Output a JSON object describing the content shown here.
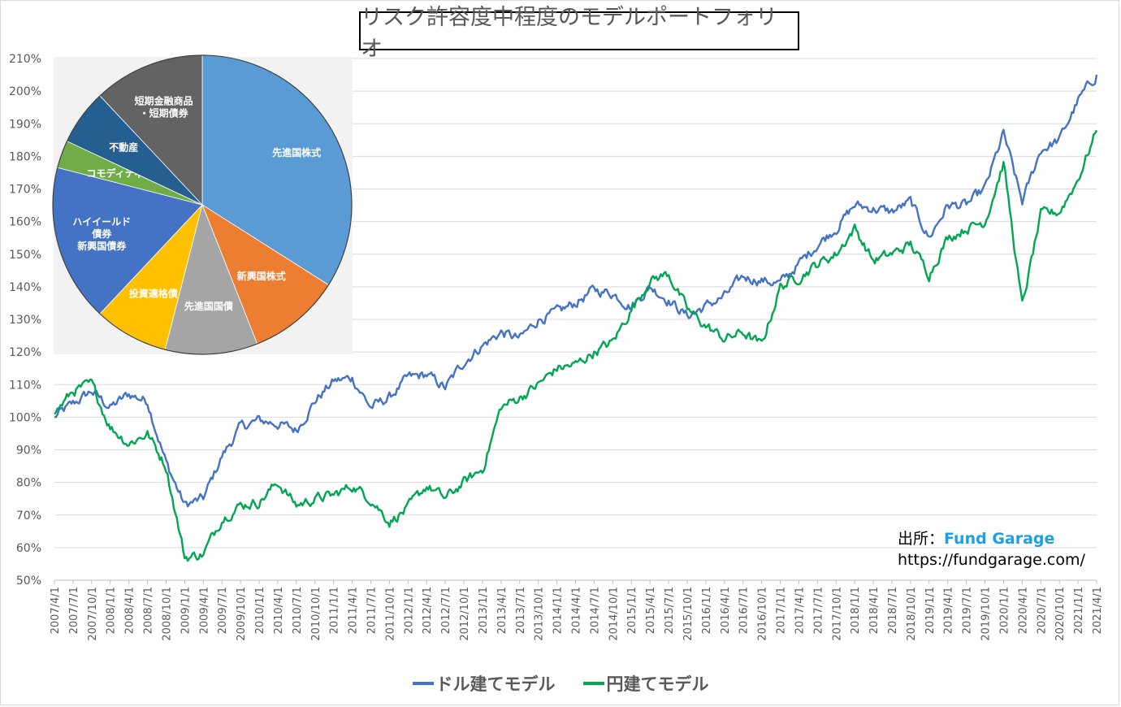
{
  "title": "リスク許容度中程度のモデルポートフォリオ",
  "source": {
    "label": "出所：",
    "brand": "Fund Garage",
    "url": "https://fundgarage.com/"
  },
  "chart_data": [
    {
      "type": "line",
      "ylim": [
        50,
        210
      ],
      "yticks": [
        "50%",
        "60%",
        "70%",
        "80%",
        "90%",
        "100%",
        "110%",
        "120%",
        "130%",
        "140%",
        "150%",
        "160%",
        "170%",
        "180%",
        "190%",
        "200%",
        "210%"
      ],
      "x": [
        "2007/4/1",
        "2007/7/1",
        "2007/10/1",
        "2008/1/1",
        "2008/4/1",
        "2008/7/1",
        "2008/10/1",
        "2009/1/1",
        "2009/4/1",
        "2009/7/1",
        "2009/10/1",
        "2010/1/1",
        "2010/4/1",
        "2010/7/1",
        "2010/10/1",
        "2011/1/1",
        "2011/4/1",
        "2011/7/1",
        "2011/10/1",
        "2012/1/1",
        "2012/4/1",
        "2012/7/1",
        "2012/10/1",
        "2013/1/1",
        "2013/4/1",
        "2013/7/1",
        "2013/10/1",
        "2014/1/1",
        "2014/4/1",
        "2014/7/1",
        "2014/10/1",
        "2015/1/1",
        "2015/4/1",
        "2015/7/1",
        "2015/10/1",
        "2016/1/1",
        "2016/4/1",
        "2016/7/1",
        "2016/10/1",
        "2017/1/1",
        "2017/4/1",
        "2017/7/1",
        "2017/10/1",
        "2018/1/1",
        "2018/4/1",
        "2018/7/1",
        "2018/10/1",
        "2019/1/1",
        "2019/4/1",
        "2019/7/1",
        "2019/10/1",
        "2020/1/1",
        "2020/4/1",
        "2020/7/1",
        "2020/10/1",
        "2021/1/1",
        "2021/4/1"
      ],
      "series": [
        {
          "name": "ドル建てモデル",
          "color": "#4472c4",
          "values": [
            100,
            104,
            108,
            103,
            107,
            105,
            86,
            73,
            75,
            88,
            97,
            99,
            98,
            96,
            105,
            111,
            112,
            103,
            106,
            112,
            113,
            109,
            117,
            122,
            126,
            124,
            130,
            132,
            135,
            139,
            138,
            134,
            140,
            136,
            131,
            134,
            137,
            143,
            142,
            141,
            147,
            153,
            158,
            165,
            164,
            163,
            166,
            155,
            165,
            165,
            170,
            187,
            166,
            182,
            185,
            197,
            205
          ]
        },
        {
          "name": "円建てモデル",
          "color": "#00a651",
          "values": [
            101,
            108,
            110,
            97,
            92,
            95,
            85,
            57,
            58,
            69,
            73,
            74,
            80,
            73,
            75,
            76,
            79,
            75,
            68,
            72,
            79,
            75,
            80,
            84,
            103,
            106,
            110,
            115,
            116,
            120,
            123,
            133,
            142,
            144,
            133,
            128,
            124,
            126,
            122,
            140,
            143,
            147,
            150,
            158,
            148,
            150,
            153,
            144,
            155,
            158,
            160,
            178,
            134,
            162,
            163,
            173,
            188
          ]
        }
      ],
      "legend": [
        "ドル建てモデル",
        "円建てモデル"
      ]
    },
    {
      "type": "pie",
      "labels": [
        "先進国株式",
        "新興国株式",
        "先進国国債",
        "投資適格債",
        "ハイイールド債券・新興国債券",
        "コモディティ",
        "不動産",
        "短期金融商品・短期債券"
      ],
      "values": [
        34,
        10,
        10,
        8,
        17,
        3,
        6,
        12
      ],
      "colors": [
        "#5b9bd5",
        "#ed7d31",
        "#a5a5a5",
        "#ffc000",
        "#4472c4",
        "#70ad47",
        "#255e91",
        "#636363"
      ],
      "slice_texts": [
        [
          "先進国株式"
        ],
        [
          "新興国株式"
        ],
        [
          "先進国国債"
        ],
        [
          "投資適格債"
        ],
        [
          "ハイイールド",
          "債券",
          "新興国債券"
        ],
        [
          "コモディティ"
        ],
        [
          "不動産"
        ],
        [
          "短期金融商品",
          "・短期債券"
        ]
      ]
    }
  ]
}
